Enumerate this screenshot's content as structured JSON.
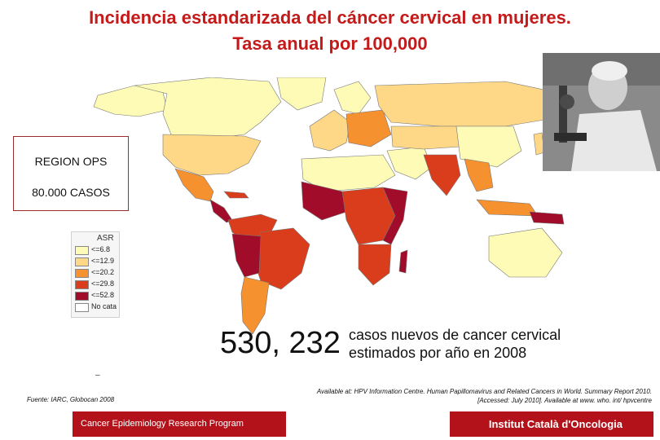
{
  "title": {
    "line1": "Incidencia estandarizada del cáncer cervical en mujeres.",
    "line2": "Tasa anual por 100,000"
  },
  "region_box": {
    "line1": "REGION OPS",
    "line2": "80.000 CASOS"
  },
  "legend": {
    "title": "ASR",
    "items": [
      {
        "label": "<=6.8",
        "color": "#fdfbb5"
      },
      {
        "label": "<=12.9",
        "color": "#fed886"
      },
      {
        "label": "<=20.2",
        "color": "#f6912f"
      },
      {
        "label": "<=29.8",
        "color": "#da3d1c"
      },
      {
        "label": "<=52.8",
        "color": "#a10c2a"
      },
      {
        "label": "No cata",
        "color": "#ffffff"
      }
    ]
  },
  "stat": {
    "number": "530, 232",
    "line1": "casos nuevos de cancer cervical",
    "line2": "estimados por año en 2008"
  },
  "dash": "–",
  "source": "Fuente: IARC, Globocan 2008",
  "available": {
    "line1": "Available at: HPV Information Centre. Human Papillomavirus and Related Cancers in World. Summary Report 2010.",
    "line2": "[Accessed: July 2010]. Available at www. who. int/ hpvcentre"
  },
  "footer": {
    "left": "Cancer Epidemiology  Research Program",
    "right": "Institut Català d'Oncologia"
  },
  "colors": {
    "title": "#c41a1a",
    "footer_bg": "#b3121a",
    "ocean": "#ffffff"
  },
  "icons": {
    "photo": "scientist-with-microscope-photo"
  }
}
